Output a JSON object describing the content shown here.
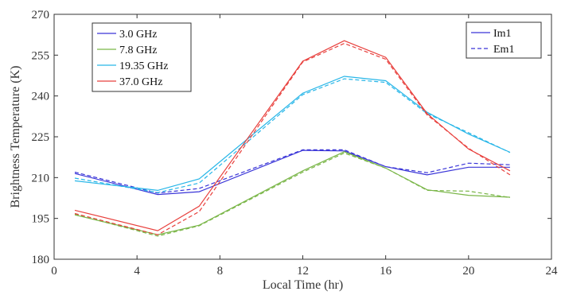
{
  "chart_data": {
    "type": "line",
    "xlabel": "Local Time (hr)",
    "ylabel": "Brightness Temperature (K)",
    "xlim": [
      0,
      24
    ],
    "ylim": [
      180,
      270
    ],
    "xticks": [
      "0",
      "4",
      "8",
      "12",
      "16",
      "20",
      "24"
    ],
    "yticks": [
      "180",
      "195",
      "210",
      "225",
      "240",
      "255",
      "270"
    ],
    "grid": false,
    "x": [
      1,
      5,
      7,
      12,
      14,
      16,
      18,
      20,
      22
    ],
    "series": [
      {
        "name": "3.0 GHz",
        "model": "Im1",
        "color": "#3a35d8",
        "values": [
          211.5,
          203.8,
          204.8,
          220.0,
          219.8,
          214.0,
          211.0,
          213.8,
          213.8
        ]
      },
      {
        "name": "3.0 GHz",
        "model": "Em1",
        "color": "#3a35d8",
        "values": [
          212.0,
          204.3,
          206.0,
          220.2,
          220.2,
          214.0,
          211.8,
          215.3,
          214.7
        ]
      },
      {
        "name": "7.8 GHz",
        "model": "Im1",
        "color": "#7ab648",
        "values": [
          196.3,
          189.0,
          192.5,
          212.5,
          219.5,
          213.5,
          205.5,
          203.5,
          202.8
        ]
      },
      {
        "name": "7.8 GHz",
        "model": "Em1",
        "color": "#7ab648",
        "values": [
          196.5,
          188.5,
          192.3,
          212.0,
          219.0,
          213.5,
          205.3,
          205.0,
          202.7
        ]
      },
      {
        "name": "19.35 GHz",
        "model": "Im1",
        "color": "#27b6e8",
        "values": [
          208.8,
          205.3,
          209.5,
          241.0,
          247.2,
          245.6,
          234.0,
          226.0,
          219.3
        ]
      },
      {
        "name": "19.35 GHz",
        "model": "Em1",
        "color": "#27b6e8",
        "values": [
          209.8,
          204.5,
          208.0,
          240.5,
          246.3,
          245.0,
          233.5,
          226.5,
          219.2
        ]
      },
      {
        "name": "37.0 GHz",
        "model": "Im1",
        "color": "#e8403d",
        "values": [
          198.0,
          190.5,
          199.5,
          252.8,
          260.3,
          254.2,
          233.5,
          220.5,
          212.5
        ]
      },
      {
        "name": "37.0 GHz",
        "model": "Em1",
        "color": "#e8403d",
        "values": [
          196.8,
          189.0,
          197.5,
          252.5,
          259.3,
          253.5,
          233.0,
          220.8,
          211.0
        ]
      }
    ],
    "legend_frequency": {
      "placement": "top-left",
      "entries": [
        {
          "label": "3.0 GHz",
          "color": "#3a35d8"
        },
        {
          "label": "7.8 GHz",
          "color": "#7ab648"
        },
        {
          "label": "19.35 GHz",
          "color": "#27b6e8"
        },
        {
          "label": "37.0 GHz",
          "color": "#e8403d"
        }
      ]
    },
    "legend_model": {
      "placement": "top-right",
      "entries": [
        {
          "label": "Im1",
          "style": "solid",
          "color": "#3a35d8"
        },
        {
          "label": "Em1",
          "style": "dashed",
          "color": "#3a35d8"
        }
      ]
    },
    "axis_color": "#333333"
  }
}
